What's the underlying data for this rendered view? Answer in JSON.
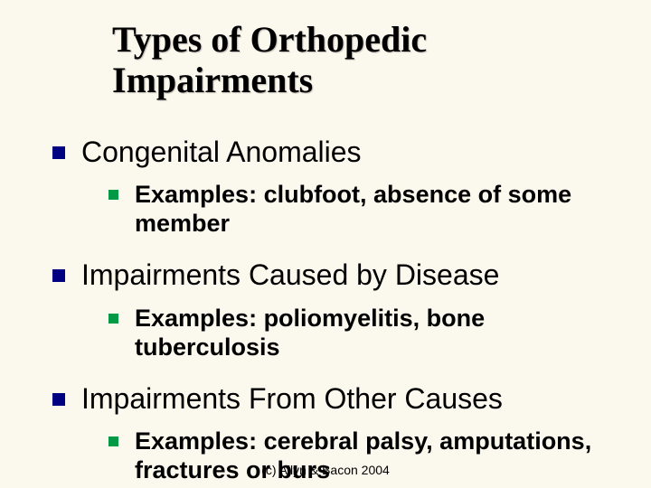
{
  "slide": {
    "title": "Types of Orthopedic Impairments",
    "colors": {
      "background": "#fbf8ed",
      "level1_bullet": "#000080",
      "level2_bullet": "#009a46",
      "title_text": "#000000",
      "body_text": "#000000"
    },
    "typography": {
      "title_font": "Times New Roman",
      "title_size_pt": 40,
      "title_weight": "bold",
      "body_font": "Arial",
      "level1_size_pt": 32,
      "level1_weight": "normal",
      "level2_size_pt": 27,
      "level2_weight": "bold"
    },
    "items": [
      {
        "label": "Congenital Anomalies",
        "sub": "Examples: clubfoot, absence of some member"
      },
      {
        "label": "Impairments Caused by Disease",
        "sub": "Examples: poliomyelitis, bone tuberculosis"
      },
      {
        "label": "Impairments From Other Causes",
        "sub": "Examples: cerebral palsy, amputations, fractures or burs"
      }
    ],
    "footer": "(c) Allyn & Bacon 2004"
  }
}
